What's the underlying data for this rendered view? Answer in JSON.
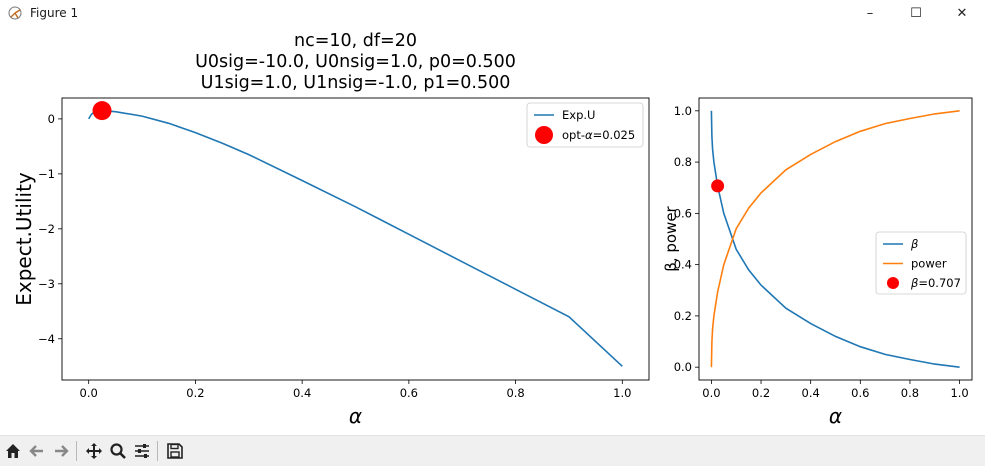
{
  "window": {
    "title": "Figure 1",
    "controls": {
      "minimize": "–",
      "maximize": "☐",
      "close": "✕"
    }
  },
  "toolbar": {
    "buttons": [
      {
        "name": "home-icon",
        "glyph": "⌂"
      },
      {
        "name": "back-icon",
        "glyph": "←"
      },
      {
        "name": "forward-icon",
        "glyph": "→"
      },
      {
        "name": "pan-icon",
        "glyph": "✥"
      },
      {
        "name": "zoom-icon",
        "glyph": "🔍"
      },
      {
        "name": "configure-subplots-icon",
        "glyph": "☰"
      },
      {
        "name": "save-icon",
        "glyph": "💾"
      }
    ]
  },
  "chart_data": [
    {
      "type": "line",
      "title_lines": [
        "nc=10, df=20",
        "U0sig=-10.0, U0nsig=1.0, p0=0.500",
        "U1sig=1.0, U1nsig=-1.0, p1=0.500"
      ],
      "xlabel": "α",
      "ylabel": "Expect.Utility",
      "xlim": [
        -0.05,
        1.05
      ],
      "ylim": [
        -4.75,
        0.38
      ],
      "xticks": [
        0.0,
        0.2,
        0.4,
        0.6,
        0.8,
        1.0
      ],
      "xtick_labels": [
        "0.0",
        "0.2",
        "0.4",
        "0.6",
        "0.8",
        "1.0"
      ],
      "yticks": [
        0,
        -1,
        -2,
        -3,
        -4
      ],
      "ytick_labels": [
        "0",
        "−1",
        "−2",
        "−3",
        "−4"
      ],
      "series": [
        {
          "name": "Exp.U",
          "color": "#1f77b4",
          "x": [
            0.0,
            0.005,
            0.01,
            0.025,
            0.05,
            0.1,
            0.15,
            0.2,
            0.25,
            0.3,
            0.4,
            0.5,
            0.6,
            0.7,
            0.8,
            0.9,
            1.0
          ],
          "y": [
            0.0,
            0.08,
            0.12,
            0.15,
            0.13,
            0.05,
            -0.08,
            -0.25,
            -0.44,
            -0.65,
            -1.12,
            -1.6,
            -2.1,
            -2.6,
            -3.1,
            -3.6,
            -4.5
          ]
        }
      ],
      "marker": {
        "name": "opt-α=0.025",
        "legend_prefix": "opt-",
        "legend_symbol": "α",
        "legend_value": "=0.025",
        "x": 0.025,
        "y": 0.15,
        "color": "#ff0000"
      },
      "legend": {
        "placement": "top-right",
        "entries": [
          "Exp.U",
          "opt-α=0.025"
        ]
      },
      "grid": false
    },
    {
      "type": "line",
      "xlabel": "α",
      "ylabel": "β, power",
      "xlim": [
        -0.05,
        1.05
      ],
      "ylim": [
        -0.05,
        1.05
      ],
      "xticks": [
        0.0,
        0.2,
        0.4,
        0.6,
        0.8,
        1.0
      ],
      "xtick_labels": [
        "0.0",
        "0.2",
        "0.4",
        "0.6",
        "0.8",
        "1.0"
      ],
      "yticks": [
        0.0,
        0.2,
        0.4,
        0.6,
        0.8,
        1.0
      ],
      "ytick_labels": [
        "0.0",
        "0.2",
        "0.4",
        "0.6",
        "0.8",
        "1.0"
      ],
      "series": [
        {
          "name": "β",
          "color": "#1f77b4",
          "x": [
            0.0,
            0.002,
            0.005,
            0.01,
            0.025,
            0.05,
            0.1,
            0.15,
            0.2,
            0.3,
            0.4,
            0.5,
            0.6,
            0.7,
            0.8,
            0.9,
            1.0
          ],
          "y": [
            1.0,
            0.9,
            0.85,
            0.8,
            0.707,
            0.6,
            0.46,
            0.38,
            0.32,
            0.23,
            0.17,
            0.12,
            0.08,
            0.05,
            0.03,
            0.012,
            0.0
          ]
        },
        {
          "name": "power",
          "color": "#ff7f0e",
          "x": [
            0.0,
            0.002,
            0.005,
            0.01,
            0.025,
            0.05,
            0.1,
            0.15,
            0.2,
            0.3,
            0.4,
            0.5,
            0.6,
            0.7,
            0.8,
            0.9,
            1.0
          ],
          "y": [
            0.0,
            0.1,
            0.15,
            0.2,
            0.293,
            0.4,
            0.54,
            0.62,
            0.68,
            0.77,
            0.83,
            0.88,
            0.92,
            0.95,
            0.97,
            0.988,
            1.0
          ]
        }
      ],
      "marker": {
        "name": "β=0.707",
        "legend_symbol": "β",
        "legend_value": "=0.707",
        "x": 0.025,
        "y": 0.707,
        "color": "#ff0000"
      },
      "legend": {
        "placement": "center-right",
        "entries": [
          "β",
          "power",
          "β=0.707"
        ]
      },
      "grid": false
    }
  ]
}
